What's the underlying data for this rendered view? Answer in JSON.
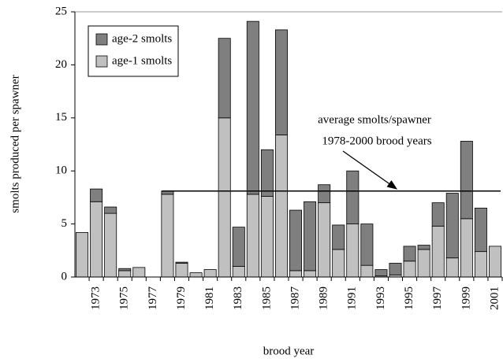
{
  "chart_data": {
    "type": "stacked_bar",
    "y_label": "smolts produced per spawner",
    "x_label": "brood year",
    "categories": [
      null,
      "1973",
      null,
      "1975",
      null,
      "1977",
      null,
      "1979",
      null,
      "1981",
      null,
      "1983",
      null,
      "1985",
      null,
      "1987",
      null,
      "1989",
      null,
      "1991",
      null,
      "1993",
      null,
      "1995",
      null,
      "1997",
      null,
      "1999",
      null,
      "2001"
    ],
    "series": [
      {
        "name": "age-1 smolts",
        "color": "#c0c0c0",
        "values": [
          4.2,
          7.1,
          6.0,
          0.6,
          0.9,
          0,
          7.8,
          1.3,
          0.4,
          0.7,
          15.0,
          1.0,
          7.8,
          7.6,
          13.4,
          0.6,
          0.6,
          7.0,
          2.6,
          5.0,
          1.1,
          0.1,
          0.2,
          1.5,
          2.6,
          4.8,
          1.8,
          5.5,
          2.4,
          2.9
        ]
      },
      {
        "name": "age-2 smolts",
        "color": "#7f7f7f",
        "values": [
          0,
          1.2,
          0.6,
          0.2,
          0,
          0,
          0.3,
          0.1,
          0,
          0,
          7.5,
          3.7,
          16.3,
          4.4,
          9.9,
          5.7,
          6.5,
          1.7,
          2.3,
          5.0,
          3.9,
          0.6,
          1.1,
          1.4,
          0.4,
          2.2,
          6.1,
          7.3,
          4.1,
          0
        ]
      }
    ],
    "ylim": [
      0,
      25
    ],
    "yticks": [
      0,
      5,
      10,
      15,
      20,
      25
    ],
    "average": 8.1,
    "annotation": [
      "average smolts/spawner",
      "1978-2000 brood years"
    ],
    "legend": "top-left"
  }
}
